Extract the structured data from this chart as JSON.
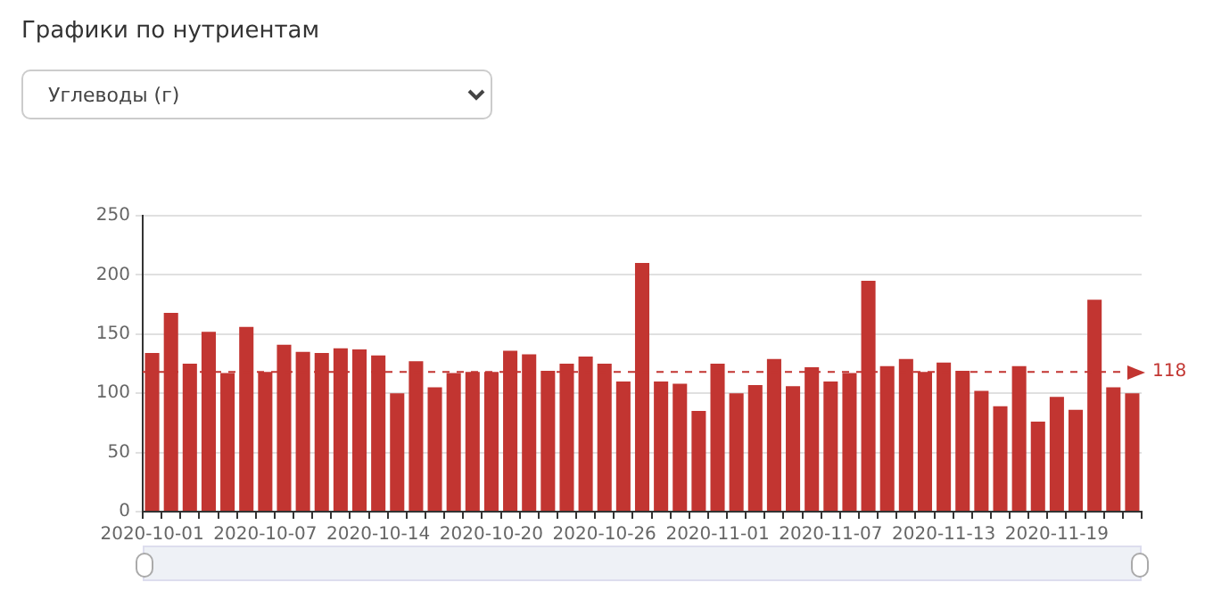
{
  "chart_data": {
    "type": "bar",
    "title": "Графики по нутриентам",
    "subtitle": "Углеводы (г)",
    "categories": [
      "2020-10-01",
      null,
      null,
      null,
      null,
      null,
      "2020-10-07",
      null,
      null,
      null,
      null,
      null,
      "2020-10-14",
      null,
      null,
      null,
      null,
      null,
      "2020-10-20",
      null,
      null,
      null,
      null,
      null,
      "2020-10-26",
      null,
      null,
      null,
      null,
      null,
      "2020-11-01",
      null,
      null,
      null,
      null,
      null,
      "2020-11-07",
      null,
      null,
      null,
      null,
      null,
      "2020-11-13",
      null,
      null,
      null,
      null,
      null,
      "2020-11-19",
      null,
      null,
      null,
      null
    ],
    "series": [
      {
        "color": "#c23531",
        "values": [
          134,
          168,
          125,
          152,
          117,
          156,
          118,
          141,
          135,
          134,
          138,
          137,
          132,
          100,
          127,
          105,
          117,
          118,
          118,
          136,
          133,
          119,
          125,
          131,
          125,
          110,
          210,
          110,
          108,
          85,
          125,
          100,
          107,
          129,
          106,
          122,
          110,
          117,
          195,
          123,
          129,
          118,
          126,
          119,
          102,
          89,
          123,
          76,
          97,
          86,
          179,
          105,
          100
        ]
      }
    ],
    "ylim": [
      0,
      250
    ],
    "yticks": [
      0,
      50,
      100,
      150,
      200,
      250
    ],
    "grid": "y",
    "legend": false,
    "ref_lines": [
      {
        "axis": "y",
        "value": 118,
        "label": "118",
        "color": "#c23531",
        "line_style": "dashed"
      }
    ]
  }
}
